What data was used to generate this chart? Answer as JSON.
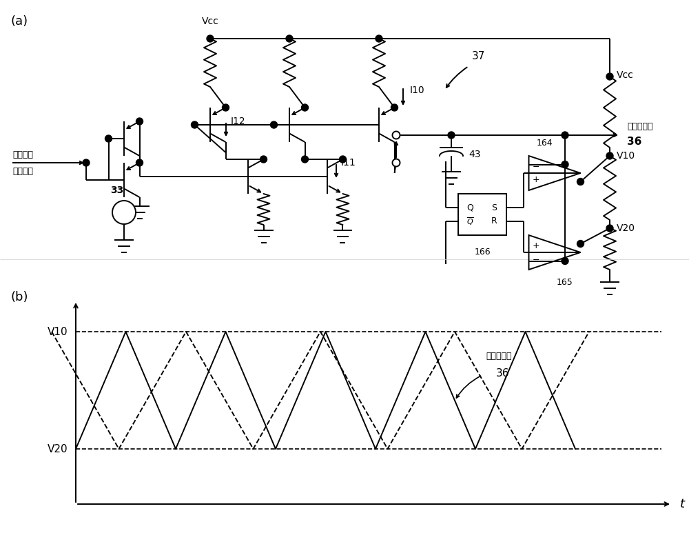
{
  "bg_color": "#ffffff",
  "line_color": "#000000",
  "fig_width": 10.0,
  "fig_height": 7.86,
  "panel_a_label": "(a)",
  "panel_b_label": "(b)",
  "label_37": "37",
  "label_36": "36",
  "label_33": "33",
  "label_I10": "I10",
  "label_I11": "I11",
  "label_I12": "I12",
  "label_43": "43",
  "label_164": "164",
  "label_165": "165",
  "label_166": "166",
  "label_Vcc": "Vcc",
  "label_V10": "V10",
  "label_V20": "V20",
  "label_triangle_wave": "三角波载波",
  "label_switch_freq": "开关频率",
  "label_control_signal": "控制信号",
  "label_t": "t"
}
